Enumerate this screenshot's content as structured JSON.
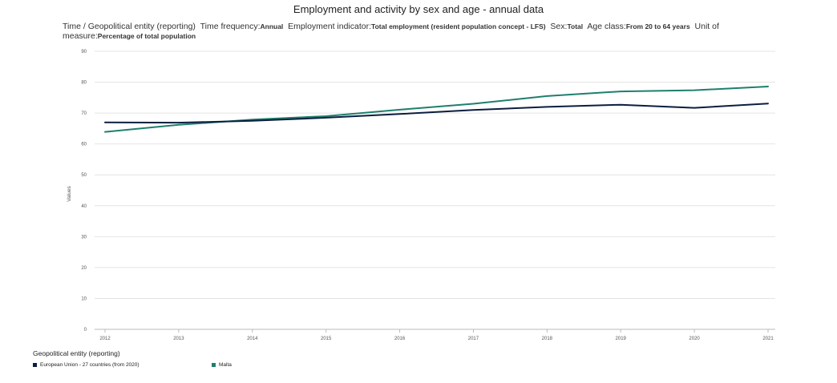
{
  "header": {
    "title": "Employment and activity by sex and age - annual data",
    "sub_prefix": "Time / Geopolitical entity (reporting)",
    "freq_label": "Time frequency:",
    "freq_value": "Annual",
    "indicator_label": "Employment indicator:",
    "indicator_value": "Total employment (resident population concept - LFS)",
    "sex_label": "Sex:",
    "sex_value": "Total",
    "age_label": "Age class:",
    "age_value": "From 20 to 64 years",
    "unit_label": "Unit of measure:",
    "unit_value": "Percentage of total population"
  },
  "legend": {
    "title": "Geopolitical entity (reporting)"
  },
  "chart_data": {
    "type": "line",
    "x": [
      2012,
      2013,
      2014,
      2015,
      2016,
      2017,
      2018,
      2019,
      2020,
      2021
    ],
    "tick_labels_x": [
      "2012",
      "2013",
      "2014",
      "2015",
      "2016",
      "2017",
      "2018",
      "2019",
      "2020",
      "2021"
    ],
    "ylabel": "Values",
    "ylim": [
      0,
      90
    ],
    "yticks": [
      0,
      10,
      20,
      30,
      40,
      50,
      60,
      70,
      80,
      90
    ],
    "grid": true,
    "legend_position": "bottom-left",
    "series": [
      {
        "name": "European Union - 27 countries (from 2020)",
        "color": "#0b1e3f",
        "values": [
          67.0,
          66.9,
          67.5,
          68.5,
          69.7,
          71.0,
          72.0,
          72.7,
          71.7,
          73.1
        ]
      },
      {
        "name": "Malta",
        "color": "#1e7f6d",
        "values": [
          63.9,
          66.2,
          67.9,
          69.0,
          71.1,
          73.0,
          75.5,
          77.0,
          77.4,
          78.6
        ]
      }
    ]
  }
}
